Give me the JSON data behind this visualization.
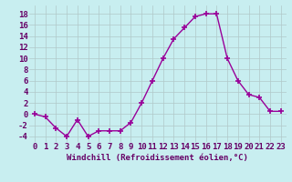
{
  "x": [
    0,
    1,
    2,
    3,
    4,
    5,
    6,
    7,
    8,
    9,
    10,
    11,
    12,
    13,
    14,
    15,
    16,
    17,
    18,
    19,
    20,
    21,
    22,
    23
  ],
  "y": [
    0,
    -0.5,
    -2.5,
    -4,
    -1,
    -4,
    -3,
    -3,
    -3,
    -1.5,
    2,
    6,
    10,
    13.5,
    15.5,
    17.5,
    18,
    18,
    10,
    6,
    3.5,
    3,
    0.5,
    0.5
  ],
  "line_color": "#990099",
  "marker": "+",
  "marker_size": 4,
  "marker_lw": 1.2,
  "bg_color": "#c8eef0",
  "grid_color": "#b0c8c8",
  "xlabel": "Windchill (Refroidissement éolien,°C)",
  "xlabel_fontsize": 6.5,
  "ylabel_ticks": [
    -4,
    -2,
    0,
    2,
    4,
    6,
    8,
    10,
    12,
    14,
    16,
    18
  ],
  "xlim": [
    -0.5,
    23.5
  ],
  "ylim": [
    -5,
    19.5
  ],
  "tick_fontsize": 6.5
}
